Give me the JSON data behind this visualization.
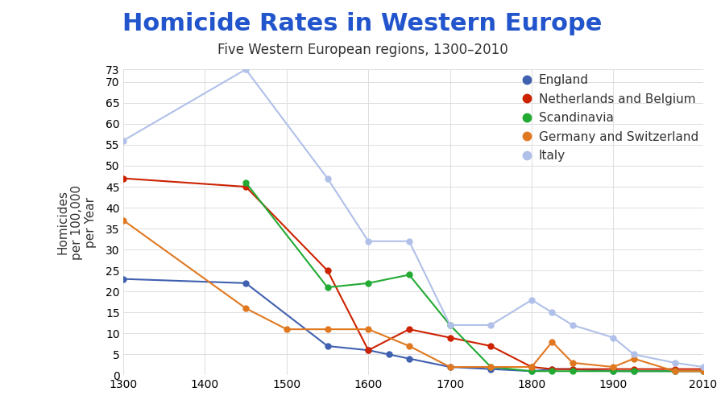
{
  "title": "Homicide Rates in Western Europe",
  "subtitle": "Five Western European regions, 1300–2010",
  "ylabel": "Homicides\nper 100,000\nper Year",
  "xlim": [
    1300,
    2010
  ],
  "ylim": [
    0,
    73
  ],
  "yticks": [
    0,
    5,
    10,
    15,
    20,
    25,
    30,
    35,
    40,
    45,
    50,
    55,
    60,
    65,
    70,
    73
  ],
  "xticks": [
    1300,
    1400,
    1500,
    1600,
    1700,
    1800,
    1900,
    2010
  ],
  "background_color": "#ffffff",
  "series": [
    {
      "label": "England",
      "color": "#4060b0",
      "x": [
        1300,
        1450,
        1550,
        1600,
        1625,
        1650,
        1700,
        1750,
        1800,
        1825,
        1850,
        1900,
        1925,
        1975,
        2010
      ],
      "y": [
        23,
        22,
        7,
        6,
        5,
        4,
        2,
        1.5,
        1,
        1.5,
        1.5,
        1,
        1,
        1,
        1
      ]
    },
    {
      "label": "Netherlands and Belgium",
      "color": "#cc2200",
      "x": [
        1300,
        1450,
        1550,
        1600,
        1650,
        1700,
        1750,
        1800,
        1825,
        1850,
        1900,
        1925,
        1975,
        2010
      ],
      "y": [
        47,
        45,
        25,
        6,
        11,
        9,
        7,
        2,
        1.5,
        1.5,
        1.5,
        1.5,
        1.5,
        1.5
      ]
    },
    {
      "label": "Scandinavia",
      "color": "#22aa33",
      "x": [
        1450,
        1550,
        1600,
        1650,
        1700,
        1750,
        1800,
        1825,
        1850,
        1900,
        1925,
        1975,
        2010
      ],
      "y": [
        46,
        21,
        22,
        24,
        12,
        2,
        1,
        1,
        1,
        1,
        1,
        1,
        1
      ]
    },
    {
      "label": "Germany and Switzerland",
      "color": "#e07820",
      "x": [
        1300,
        1450,
        1500,
        1550,
        1600,
        1650,
        1700,
        1750,
        1800,
        1825,
        1850,
        1900,
        1925,
        1975,
        2010
      ],
      "y": [
        37,
        16,
        11,
        11,
        11,
        7,
        2,
        2,
        2,
        8,
        3,
        2,
        4,
        1,
        1
      ]
    },
    {
      "label": "Italy",
      "color": "#b0c0e8",
      "x": [
        1300,
        1450,
        1550,
        1600,
        1650,
        1700,
        1750,
        1800,
        1825,
        1850,
        1900,
        1925,
        1975,
        2010
      ],
      "y": [
        56,
        73,
        47,
        32,
        32,
        12,
        12,
        18,
        15,
        12,
        9,
        5,
        3,
        2
      ]
    }
  ],
  "title_color": "#2255cc",
  "title_fontsize": 22,
  "subtitle_fontsize": 12,
  "legend_fontsize": 11,
  "tick_fontsize": 10,
  "ylabel_fontsize": 11
}
